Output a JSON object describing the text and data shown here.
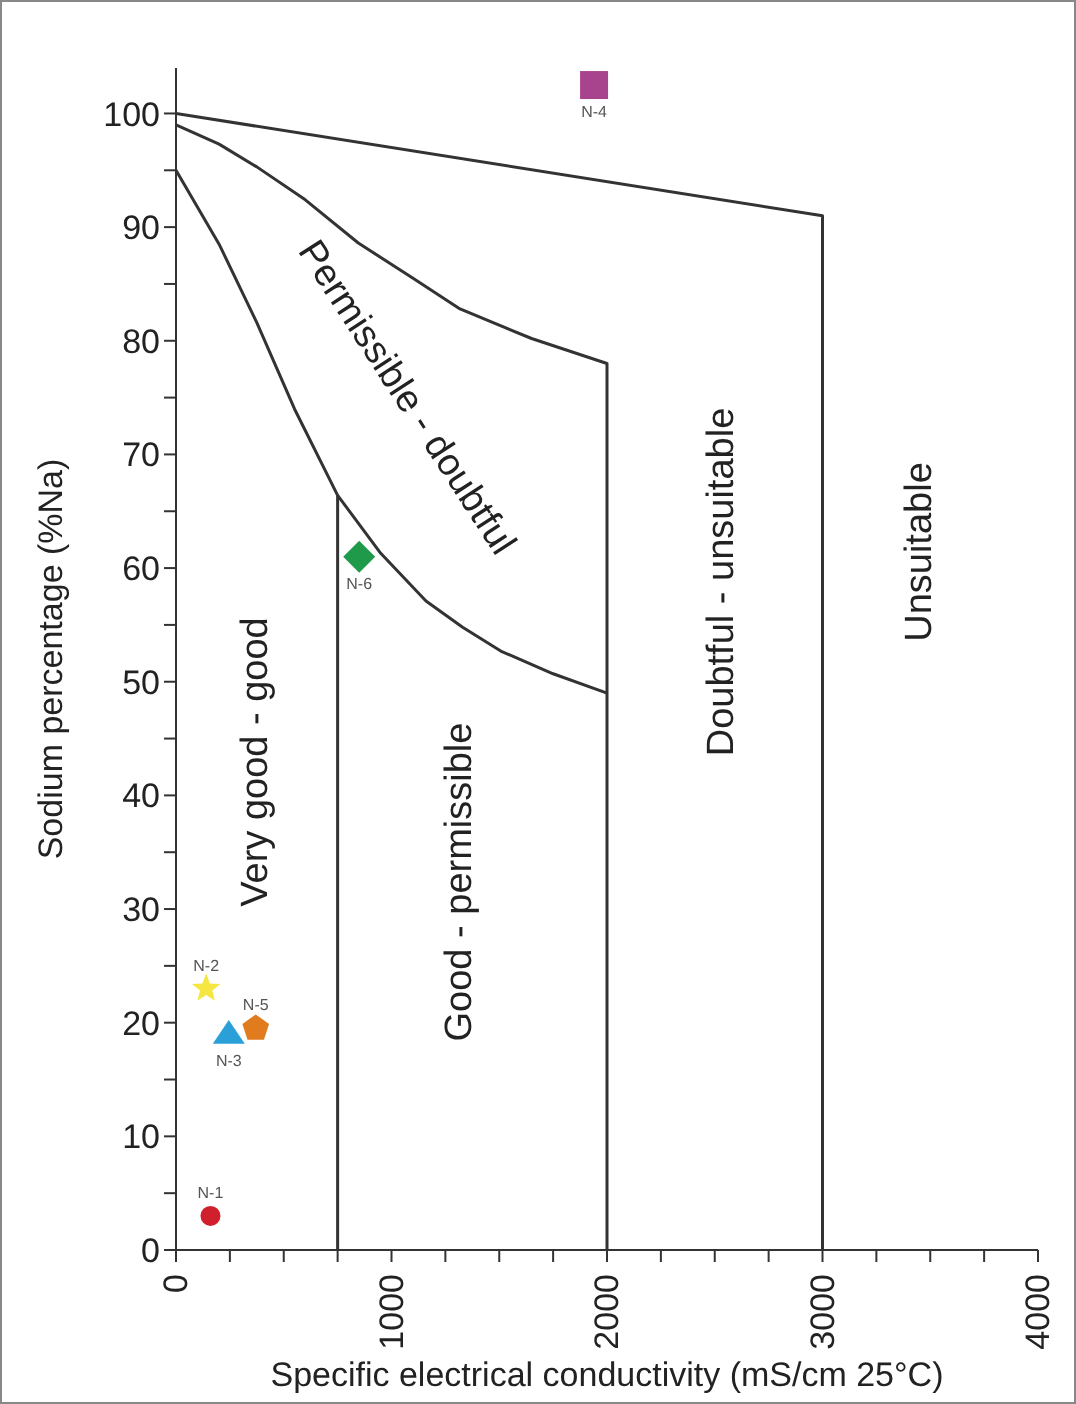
{
  "chart_data": {
    "type": "scatter",
    "xlabel": "Specific electrical conductivity (mS/cm 25°C)",
    "ylabel": "Sodium percentage  (%Na)",
    "xlim": [
      0,
      4000
    ],
    "xticks": [
      0,
      {
        "value": 250,
        "label": null
      },
      {
        "value": 500,
        "label": null
      },
      {
        "value": 750,
        "label": null
      },
      1000,
      {
        "value": 1250,
        "label": null
      },
      {
        "value": 1500,
        "label": null
      },
      {
        "value": 1750,
        "label": null
      },
      2000,
      {
        "value": 2250,
        "label": null
      },
      {
        "value": 2500,
        "label": null
      },
      {
        "value": 2750,
        "label": null
      },
      3000,
      {
        "value": 3250,
        "label": null
      },
      {
        "value": 3500,
        "label": null
      },
      {
        "value": 3750,
        "label": null
      },
      4000
    ],
    "ylim": [
      0,
      104
    ],
    "yticks": [
      0,
      {
        "value": 5,
        "label": null
      },
      10,
      {
        "value": 15,
        "label": null
      },
      20,
      {
        "value": 25,
        "label": null
      },
      30,
      {
        "value": 35,
        "label": null
      },
      40,
      {
        "value": 45,
        "label": null
      },
      50,
      {
        "value": 55,
        "label": null
      },
      60,
      {
        "value": 65,
        "label": null
      },
      70,
      {
        "value": 75,
        "label": null
      },
      80,
      {
        "value": 85,
        "label": null
      },
      90,
      {
        "value": 95,
        "label": null
      },
      100
    ],
    "grid": false,
    "series": [
      {
        "name": "N-1",
        "color": "#d0202c",
        "marker": "circle",
        "x": [
          160
        ],
        "values": [
          3
        ]
      },
      {
        "name": "N-2",
        "color": "#f5e642",
        "marker": "star",
        "x": [
          140
        ],
        "values": [
          23
        ]
      },
      {
        "name": "N-3",
        "color": "#2a9fd8",
        "marker": "triangle",
        "x": [
          245
        ],
        "values": [
          19
        ]
      },
      {
        "name": "N-4",
        "color": "#a8448e",
        "marker": "square",
        "x": [
          1940
        ],
        "values": [
          102.5
        ]
      },
      {
        "name": "N-5",
        "color": "#e07b1e",
        "x": [
          370
        ],
        "values": [
          19.5
        ]
      },
      {
        "name": "N-6",
        "color": "#1f9a4a",
        "marker": "diamond",
        "x": [
          850
        ],
        "values": [
          61
        ]
      },
      {
        "type": "line",
        "color": "#333333",
        "x": [
          0,
          3000,
          3000
        ],
        "values": [
          100,
          91,
          0
        ]
      },
      {
        "type": "line",
        "color": "#333333",
        "x": [
          0,
          200,
          375,
          600,
          846,
          1100,
          1318,
          1650,
          2000,
          2000
        ],
        "values": [
          99,
          97.3,
          95.3,
          92.4,
          88.6,
          85.5,
          82.8,
          80.2,
          78,
          0
        ]
      },
      {
        "type": "line",
        "color": "#333333",
        "x": [
          0,
          200,
          375,
          550,
          750,
          750
        ],
        "values": [
          95,
          88.5,
          81.6,
          74,
          66.4,
          0
        ]
      },
      {
        "type": "line",
        "color": "#333333",
        "x": [
          750,
          950,
          1160,
          1330,
          1507,
          1750,
          2000
        ],
        "values": [
          66.4,
          61.3,
          57.1,
          54.8,
          52.7,
          50.7,
          49
        ]
      }
    ],
    "annotations": [
      "Very good - good",
      "Good - permissible",
      "Permissible - doubtful",
      "Doubtful - unsuitable",
      "Unsuitable"
    ]
  }
}
